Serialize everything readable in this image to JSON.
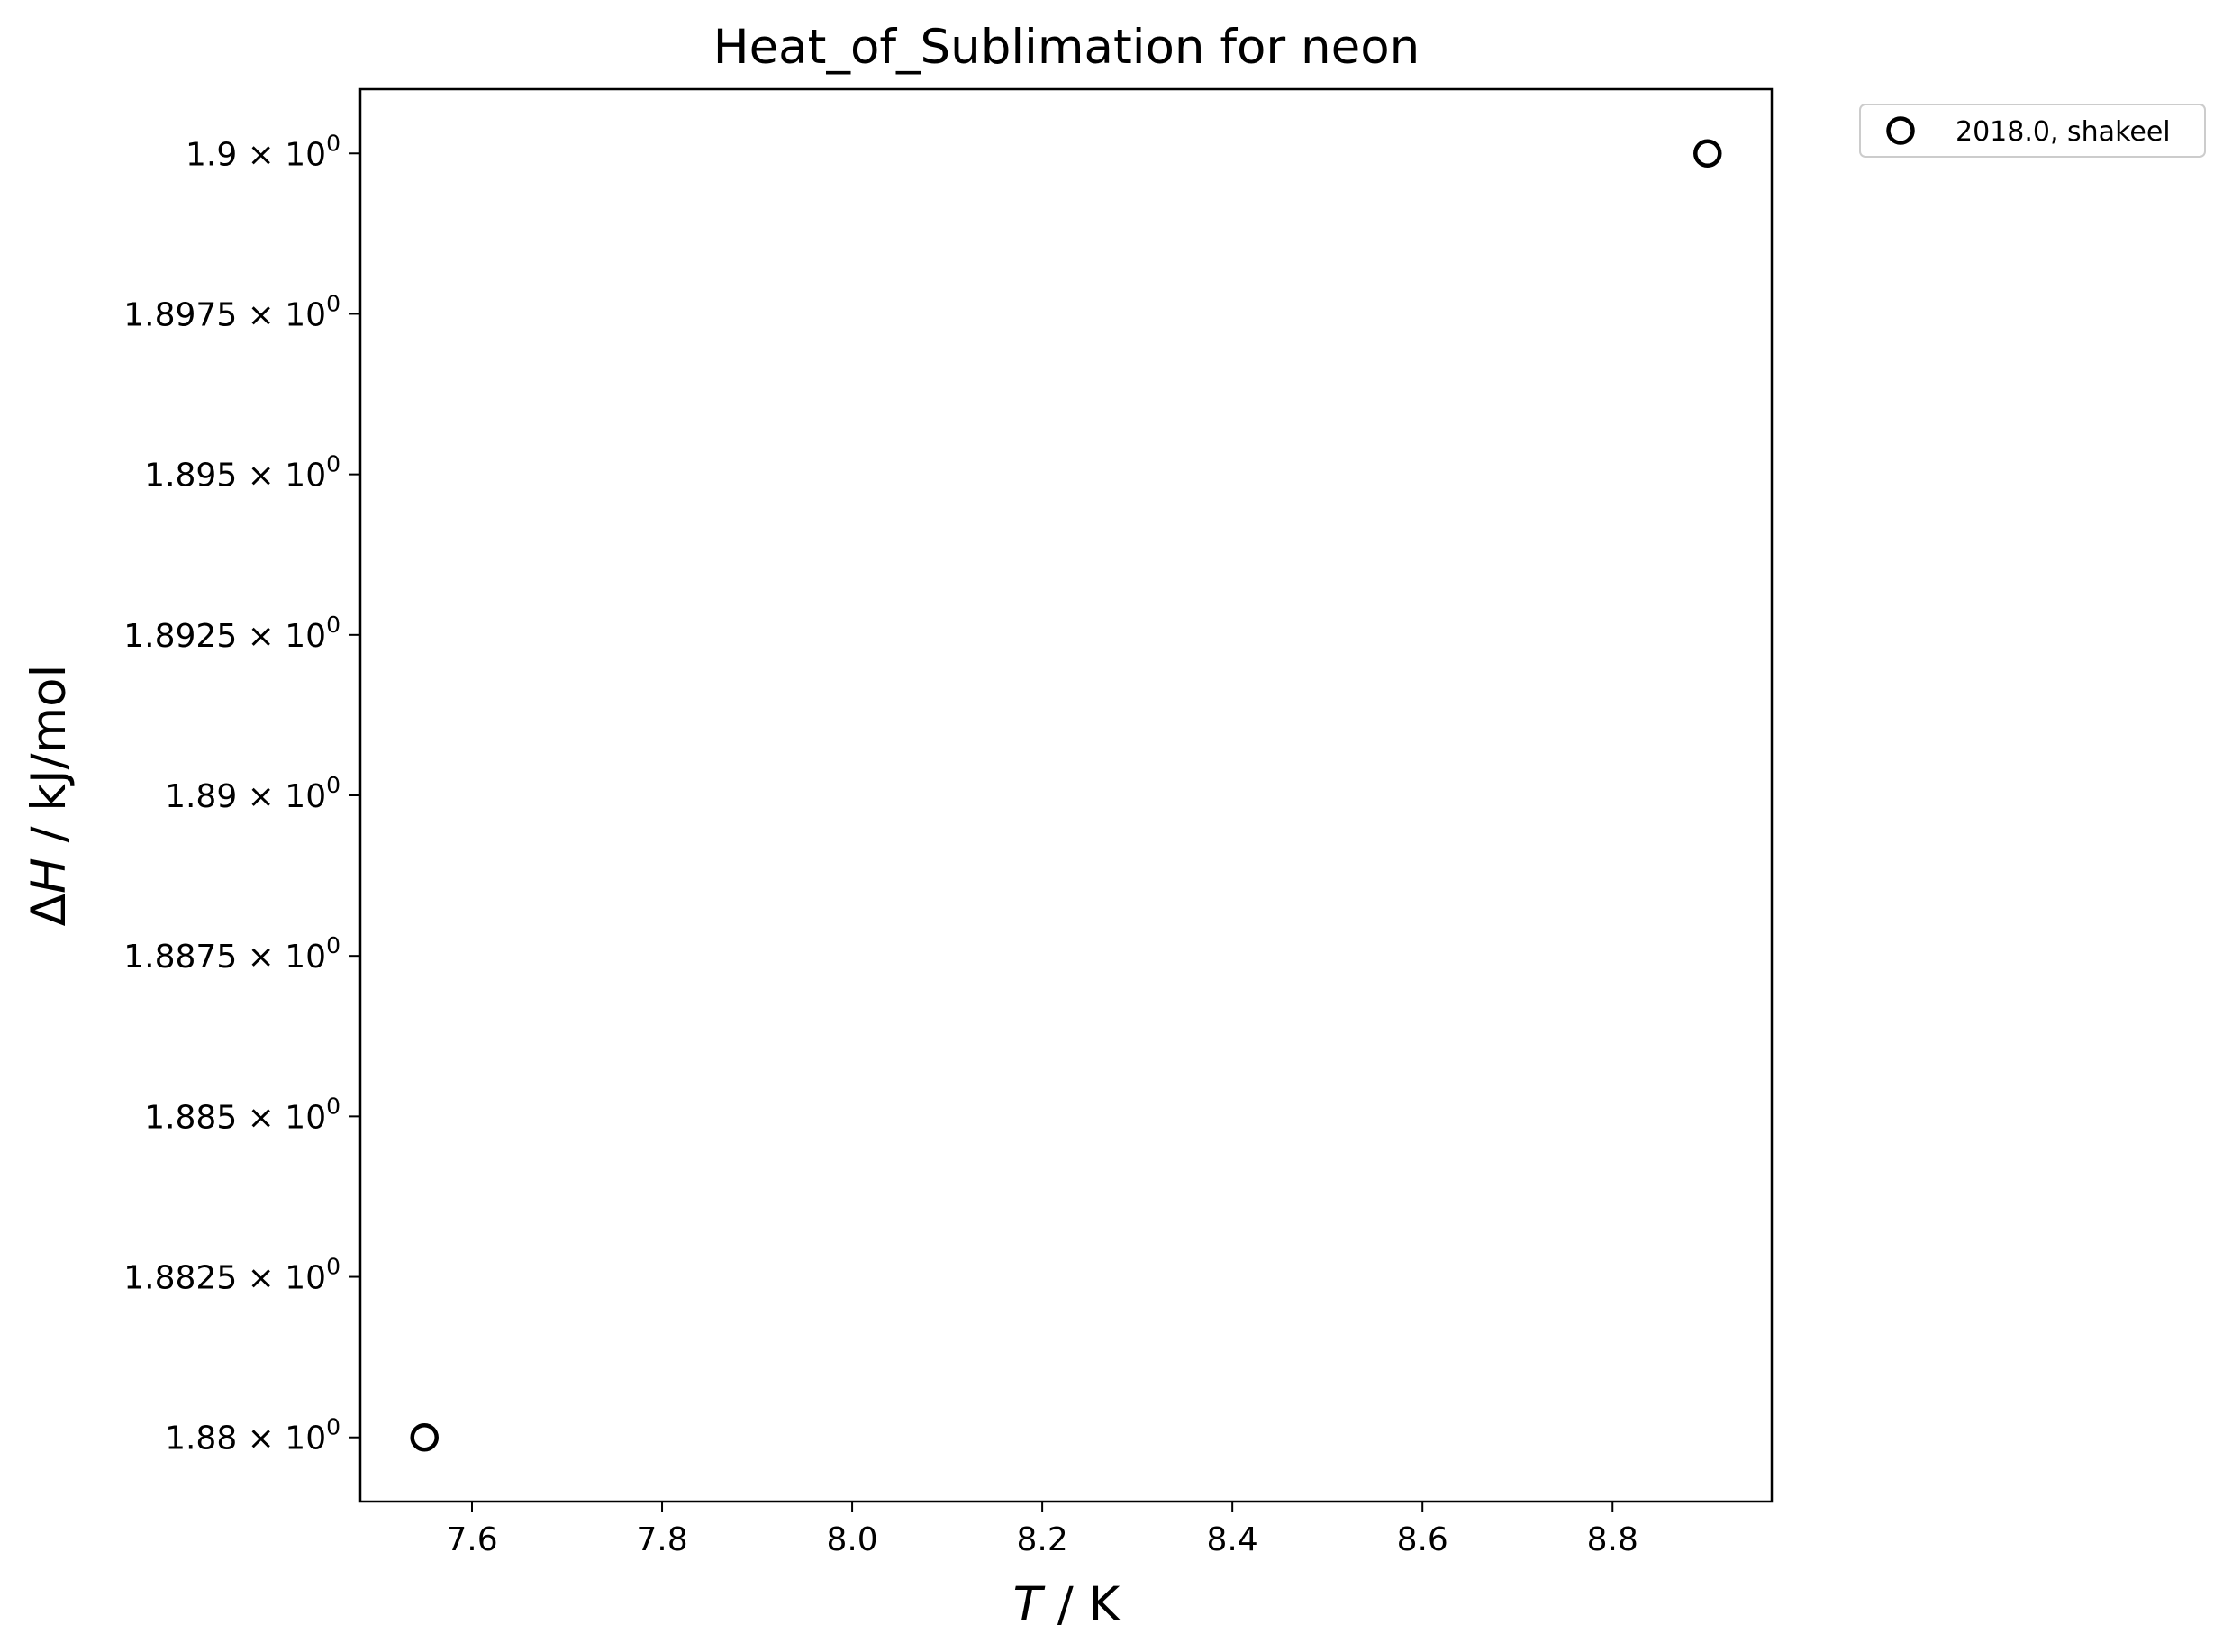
{
  "chart_data": {
    "type": "scatter",
    "title": "Heat_of_Sublimation for neon",
    "xlabel": {
      "var": "T",
      "unit": " / K"
    },
    "ylabel": {
      "var": "H",
      "prefix": "Δ",
      "unit": " / kJ/mol"
    },
    "xlim": [
      7.4825,
      8.9675
    ],
    "ylim": [
      1.879,
      1.901
    ],
    "x_ticks": [
      7.6,
      7.8,
      8.0,
      8.2,
      8.4,
      8.6,
      8.8
    ],
    "x_tick_labels": [
      "7.6",
      "7.8",
      "8.0",
      "8.2",
      "8.4",
      "8.6",
      "8.8"
    ],
    "y_ticks": [
      1.88,
      1.8825,
      1.885,
      1.8875,
      1.89,
      1.8925,
      1.895,
      1.8975,
      1.9
    ],
    "y_tick_mantissas": [
      "1.88",
      "1.8825",
      "1.885",
      "1.8875",
      "1.89",
      "1.8925",
      "1.895",
      "1.8975",
      "1.9"
    ],
    "y_tick_suffix": "× 10",
    "y_tick_exponent": "0",
    "grid": false,
    "legend_position": "outside-top-right",
    "series": [
      {
        "name": "2018.0, shakeel",
        "marker": "open-circle",
        "color": "#000000",
        "points": [
          {
            "x": 7.55,
            "y": 1.88
          },
          {
            "x": 8.9,
            "y": 1.9
          }
        ]
      }
    ]
  }
}
